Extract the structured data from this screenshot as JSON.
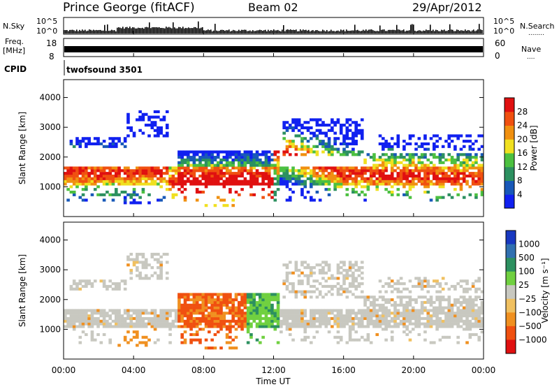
{
  "header": {
    "station": "Prince George (fitACF)",
    "beam": "Beam 02",
    "date": "29/Apr/2012"
  },
  "chart_data": [
    {
      "type": "line",
      "panel": "noise",
      "left_labels": [
        "N.Sky",
        "10^5",
        "10^0"
      ],
      "right_labels": [
        "10^5",
        "10^0",
        "N.Search"
      ],
      "right_legend": "........"
    },
    {
      "type": "line",
      "panel": "frequency",
      "left_labels": [
        "Freq.",
        "[MHz]",
        "18",
        "8"
      ],
      "right_labels": [
        "60",
        "0",
        "Nave"
      ],
      "right_legend": "...."
    },
    {
      "type": "table",
      "panel": "cpid",
      "label": "CPID",
      "value": "twofsound 3501"
    },
    {
      "type": "heatmap",
      "panel": "power",
      "ylabel": "Slant Range [km]",
      "yticks": [
        "1000",
        "2000",
        "3000",
        "4000"
      ],
      "ylim": [
        0,
        4600
      ],
      "xlim": [
        0,
        24
      ],
      "colorbar": {
        "label": "Power [dB]",
        "ticks": [
          "4",
          "8",
          "12",
          "16",
          "20",
          "24",
          "28"
        ],
        "colors": [
          "#1020f0",
          "#1858b8",
          "#2c9060",
          "#4cc040",
          "#f0e020",
          "#f09010",
          "#f05010",
          "#e01010"
        ]
      }
    },
    {
      "type": "heatmap",
      "panel": "velocity",
      "ylabel": "Slant Range [km]",
      "yticks": [
        "1000",
        "2000",
        "3000",
        "4000"
      ],
      "ylim": [
        0,
        4600
      ],
      "xlim": [
        0,
        24
      ],
      "colorbar": {
        "label": "Velocity [m s⁻¹]",
        "ticks": [
          "1000",
          "500",
          "100",
          "25",
          "−25",
          "−100",
          "−500",
          "−1000"
        ],
        "colors": [
          "#1838c0",
          "#3070b0",
          "#2c9060",
          "#70d040",
          "#c8c8c0",
          "#f0c060",
          "#f09020",
          "#f05010",
          "#e01010"
        ]
      },
      "xticks": [
        "00:00",
        "04:00",
        "08:00",
        "12:00",
        "16:00",
        "20:00",
        "00:00"
      ],
      "xlabel": "Time UT"
    }
  ]
}
